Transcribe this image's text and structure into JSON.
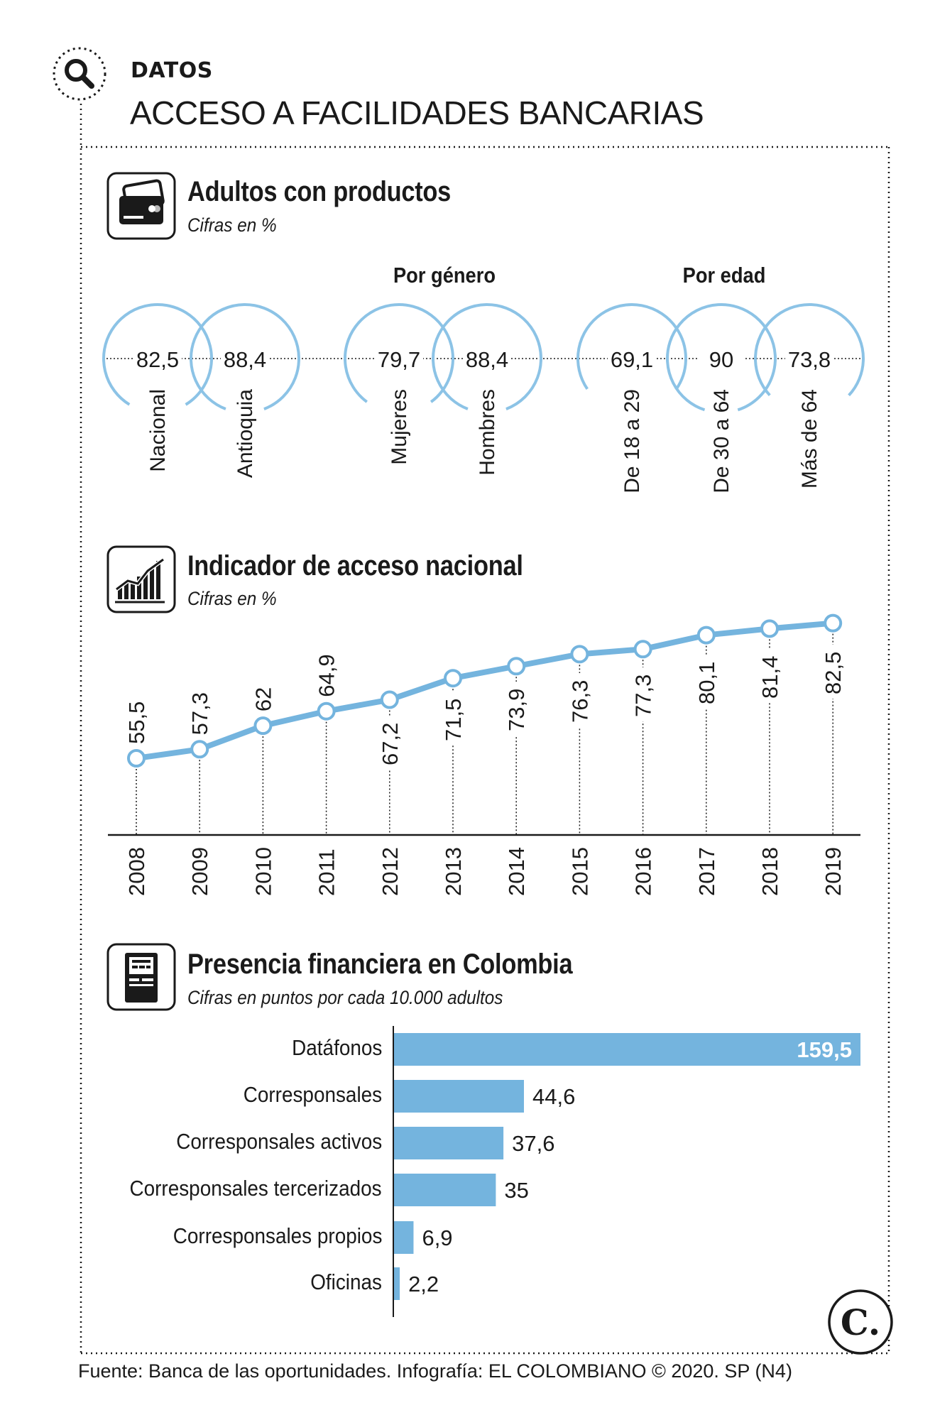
{
  "header": {
    "kicker": "DATOS",
    "title": "ACCESO A FACILIDADES BANCARIAS",
    "search_icon": "search-icon"
  },
  "colors": {
    "accent": "#74b4de",
    "accent_line": "#8cc3e6",
    "text": "#1a1a1a",
    "bar_value_on_bar": "#ffffff"
  },
  "section1": {
    "icon": "credit-card-icon",
    "title": "Adultos con productos",
    "subtitle": "Cifras en %",
    "group_gender": "Por género",
    "group_age": "Por edad"
  },
  "section2": {
    "icon": "rising-chart-icon",
    "title": "Indicador de acceso nacional",
    "subtitle": "Cifras en %"
  },
  "section3": {
    "icon": "atm-icon",
    "title": "Presencia financiera en Colombia",
    "subtitle": "Cifras en puntos por cada 10.000 adultos"
  },
  "footer": {
    "source": "Fuente: Banca de las oportunidades. Infografía: EL COLOMBIANO © 2020. SP (N4)",
    "logo_letter": "C."
  },
  "chart_data": [
    {
      "type": "circles",
      "title": "Adultos con productos",
      "subtitle": "Cifras en %",
      "groups": [
        "",
        "Por género",
        "Por edad"
      ],
      "categories": [
        "Nacional",
        "Antioquia",
        "Mujeres",
        "Hombres",
        "De 18 a 29",
        "De 30 a 64",
        "Más de 64"
      ],
      "values": [
        82.5,
        88.4,
        79.7,
        88.4,
        69.1,
        90,
        73.8
      ],
      "labels": [
        "82,5",
        "88,4",
        "79,7",
        "88,4",
        "69,1",
        "90",
        "73,8"
      ]
    },
    {
      "type": "line",
      "title": "Indicador de acceso nacional",
      "subtitle": "Cifras en %",
      "x": [
        "2008",
        "2009",
        "2010",
        "2011",
        "2012",
        "2013",
        "2014",
        "2015",
        "2016",
        "2017",
        "2018",
        "2019"
      ],
      "values": [
        55.5,
        57.3,
        62,
        64.9,
        67.2,
        71.5,
        73.9,
        76.3,
        77.3,
        80.1,
        81.4,
        82.5
      ],
      "labels": [
        "55,5",
        "57,3",
        "62",
        "64,9",
        "67,2",
        "71,5",
        "73,9",
        "76,3",
        "77,3",
        "80,1",
        "81,4",
        "82,5"
      ],
      "grid": false
    },
    {
      "type": "bar",
      "orientation": "horizontal",
      "title": "Presencia financiera en Colombia",
      "subtitle": "Cifras en puntos por cada 10.000 adultos",
      "categories": [
        "Datáfonos",
        "Corresponsales",
        "Corresponsales activos",
        "Corresponsales tercerizados",
        "Corresponsales propios",
        "Oficinas"
      ],
      "values": [
        159.5,
        44.6,
        37.6,
        35,
        6.9,
        2.2
      ],
      "labels": [
        "159,5",
        "44,6",
        "37,6",
        "35",
        "6,9",
        "2,2"
      ]
    }
  ]
}
